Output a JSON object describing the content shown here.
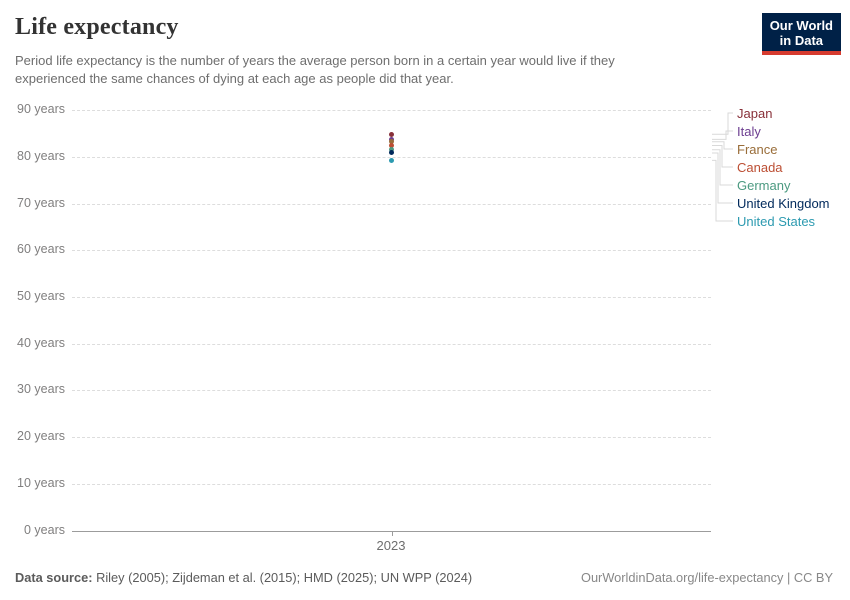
{
  "header": {
    "title": "Life expectancy",
    "subtitle": "Period life expectancy is the number of years the average person born in a certain year would live if they\nexperienced the same chances of dying at each age as people did that year."
  },
  "logo": {
    "line1": "Our World",
    "line2": "in Data",
    "bg_color": "#002147",
    "accent_color": "#D63B2F"
  },
  "chart_data": {
    "type": "scatter",
    "title": "Life expectancy",
    "x_tick_label": "2023",
    "x_values": [
      2023
    ],
    "ylim": [
      0,
      90
    ],
    "yticks": [
      0,
      10,
      20,
      30,
      40,
      50,
      60,
      70,
      80,
      90
    ],
    "ytick_labels": [
      "0 years",
      "10 years",
      "20 years",
      "30 years",
      "40 years",
      "50 years",
      "60 years",
      "70 years",
      "80 years",
      "90 years"
    ],
    "grid": true,
    "legend_position": "right",
    "series": [
      {
        "name": "Japan",
        "color": "#883039",
        "values": [
          84.9
        ]
      },
      {
        "name": "Italy",
        "color": "#6D3E91",
        "values": [
          83.8
        ]
      },
      {
        "name": "France",
        "color": "#996D39",
        "values": [
          83.3
        ]
      },
      {
        "name": "Canada",
        "color": "#BC4E33",
        "values": [
          82.5
        ]
      },
      {
        "name": "Germany",
        "color": "#4C9A81",
        "values": [
          81.6
        ]
      },
      {
        "name": "United Kingdom",
        "color": "#00295B",
        "values": [
          80.9
        ]
      },
      {
        "name": "United States",
        "color": "#2C9AB0",
        "values": [
          79.3
        ]
      }
    ]
  },
  "footer": {
    "source_label": "Data source:",
    "source_text": "Riley (2005); Zijdeman et al. (2015); HMD (2025); UN WPP (2024)",
    "link_text": "OurWorldinData.org/life-expectancy | CC BY"
  }
}
